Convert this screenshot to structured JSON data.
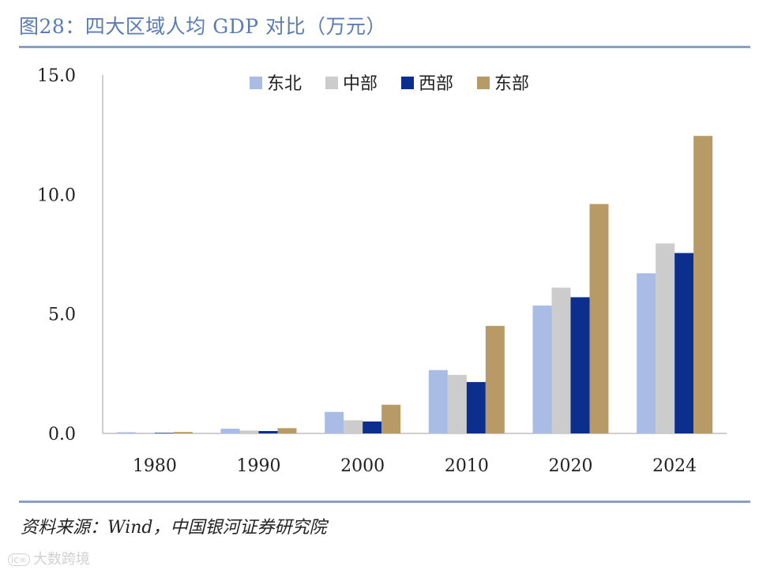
{
  "header": {
    "title": "图28：四大区域人均 GDP 对比（万元）"
  },
  "footer": {
    "source": "资料来源：Wind，中国银河证券研究院",
    "watermark": "大数跨境",
    "watermark_logo": "ic∞"
  },
  "colors": {
    "东北": "#a9bce6",
    "中部": "#cccccc",
    "西部": "#0c2e8c",
    "东部": "#b89a66",
    "axis": "#cfcfcf",
    "title": "#5b7bb5",
    "rule": "#8b9ec4"
  },
  "chart_data": {
    "type": "bar",
    "title": "",
    "xlabel": "",
    "ylabel": "",
    "ylim": [
      0,
      15
    ],
    "yticks": [
      "0.0",
      "5.0",
      "10.0",
      "15.0"
    ],
    "legend_position": "top-center",
    "categories": [
      "1980",
      "1990",
      "2000",
      "2010",
      "2020",
      "2024"
    ],
    "series": [
      {
        "name": "东北",
        "values": [
          0.05,
          0.2,
          0.9,
          2.65,
          5.35,
          6.7
        ]
      },
      {
        "name": "中部",
        "values": [
          0.03,
          0.12,
          0.55,
          2.45,
          6.1,
          7.95
        ]
      },
      {
        "name": "西部",
        "values": [
          0.02,
          0.1,
          0.5,
          2.15,
          5.7,
          7.55
        ]
      },
      {
        "name": "东部",
        "values": [
          0.06,
          0.22,
          1.2,
          4.5,
          9.6,
          12.45
        ]
      }
    ]
  }
}
